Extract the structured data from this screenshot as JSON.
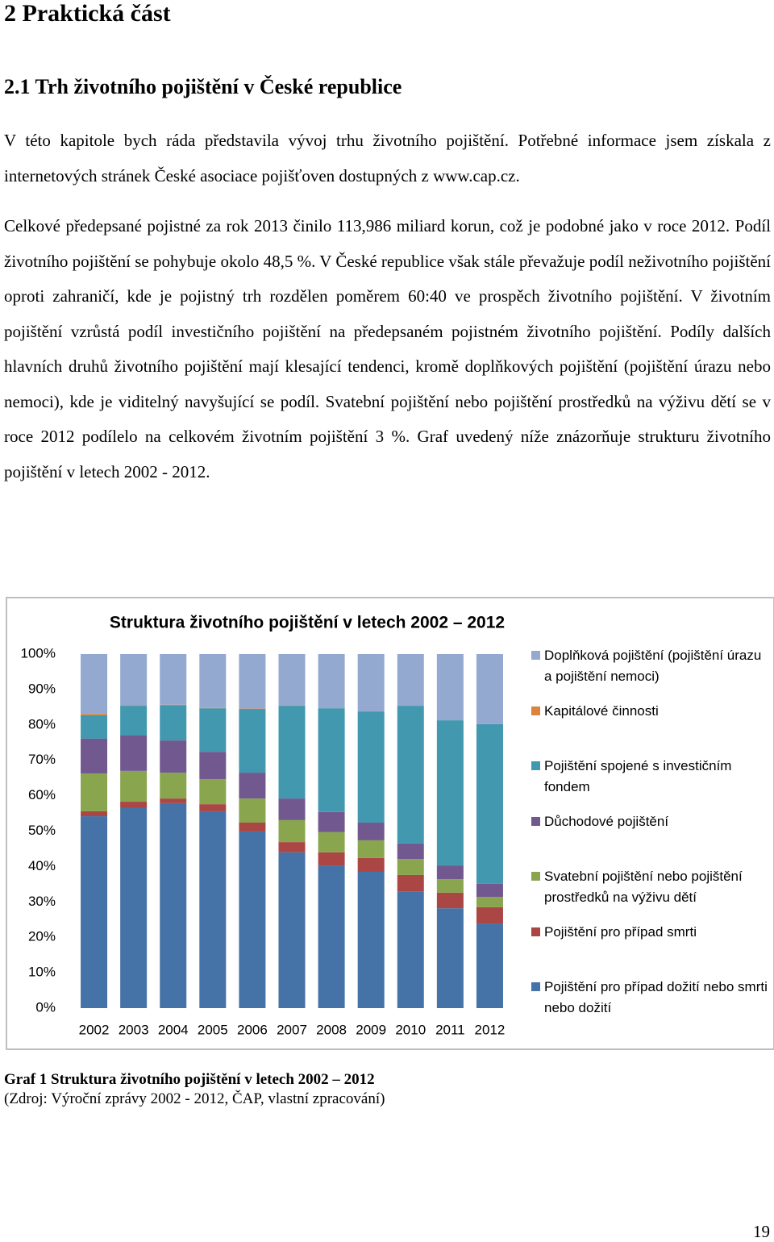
{
  "heading": "2 Praktická část",
  "subheading": "2.1 Trh životního pojištění v České republice",
  "paragraphs": [
    "V této kapitole bych ráda představila vývoj trhu životního pojištění. Potřebné informace jsem získala z internetových stránek České asociace pojišťoven dostupných z www.cap.cz.",
    "Celkové předepsané pojistné za rok 2013 činilo 113,986 miliard korun, což je podobné jako v roce 2012. Podíl životního pojištění se pohybuje okolo 48,5 %. V České republice však stále převažuje podíl neživotního pojištění oproti zahraničí, kde je pojistný trh rozdělen poměrem 60:40 ve prospěch životního pojištění. V životním pojištění vzrůstá podíl investičního pojištění na předepsaném pojistném životního pojištění. Podíly dalších hlavních druhů životního pojištění mají klesající tendenci, kromě doplňkových pojištění (pojištění úrazu nebo nemoci), kde je viditelný navyšující se podíl. Svatební pojištění nebo pojištění prostředků na výživu dětí se v roce 2012 podílelo na celkovém životním pojištění 3 %. Graf uvedený níže znázorňuje strukturu životního pojištění v letech 2002 - 2012."
  ],
  "chart_data": {
    "type": "stacked_bar",
    "title": "Struktura životního pojištění v letech 2002 – 2012",
    "categories": [
      "2002",
      "2003",
      "2004",
      "2005",
      "2006",
      "2007",
      "2008",
      "2009",
      "2010",
      "2011",
      "2012"
    ],
    "ylim": [
      0,
      100
    ],
    "yticks": [
      {
        "value": 0,
        "label": "0%"
      },
      {
        "value": 10,
        "label": "10%"
      },
      {
        "value": 20,
        "label": "20%"
      },
      {
        "value": 30,
        "label": "30%"
      },
      {
        "value": 40,
        "label": "40%"
      },
      {
        "value": 50,
        "label": "50%"
      },
      {
        "value": 60,
        "label": "60%"
      },
      {
        "value": 70,
        "label": "70%"
      },
      {
        "value": 80,
        "label": "80%"
      },
      {
        "value": 90,
        "label": "90%"
      },
      {
        "value": 100,
        "label": "100%"
      }
    ],
    "series": [
      {
        "name": "Pojištění pro případ dožití nebo smrti nebo dožití",
        "color": "#4572a7",
        "values": [
          54.2,
          56.5,
          57.9,
          55.6,
          49.9,
          44.0,
          40.3,
          38.5,
          33.0,
          28.2,
          23.9
        ]
      },
      {
        "name": "Pojištění pro případ smrti",
        "color": "#aa4643",
        "values": [
          1.4,
          1.8,
          1.3,
          2.0,
          2.5,
          2.9,
          3.7,
          3.9,
          4.6,
          4.4,
          4.6
        ]
      },
      {
        "name": "Svatební pojištění nebo pojištění prostředků na výživu dětí",
        "color": "#89a54e",
        "values": [
          10.7,
          8.7,
          7.3,
          7.1,
          6.8,
          6.2,
          5.7,
          5.0,
          4.5,
          3.8,
          2.9
        ]
      },
      {
        "name": "Důchodové pojištění",
        "color": "#71588f",
        "values": [
          9.8,
          10.0,
          9.1,
          7.7,
          7.3,
          6.1,
          5.7,
          5.0,
          4.4,
          3.9,
          3.7
        ]
      },
      {
        "name": "Pojištění spojené s investičním fondem",
        "color": "#4198af",
        "values": [
          6.6,
          8.4,
          10.0,
          12.3,
          18.0,
          26.2,
          29.3,
          31.4,
          38.9,
          41.0,
          45.1
        ]
      },
      {
        "name": "Kapitálové činnosti",
        "color": "#db843d",
        "values": [
          0.4,
          0.2,
          0.1,
          0.1,
          0.1,
          0.1,
          0,
          0,
          0,
          0,
          0
        ]
      },
      {
        "name": "Doplňková pojištění (pojištění úrazu a pojištění nemoci)",
        "color": "#93a9cf",
        "values": [
          16.9,
          14.4,
          14.3,
          15.2,
          15.4,
          14.5,
          15.3,
          16.2,
          14.6,
          18.7,
          19.8
        ]
      }
    ]
  },
  "caption": {
    "title": "Graf 1 Struktura životního pojištění v letech 2002 – 2012",
    "source": "(Zdroj: Výroční zprávy 2002 - 2012, ČAP, vlastní zpracování)"
  },
  "page_number": "19"
}
